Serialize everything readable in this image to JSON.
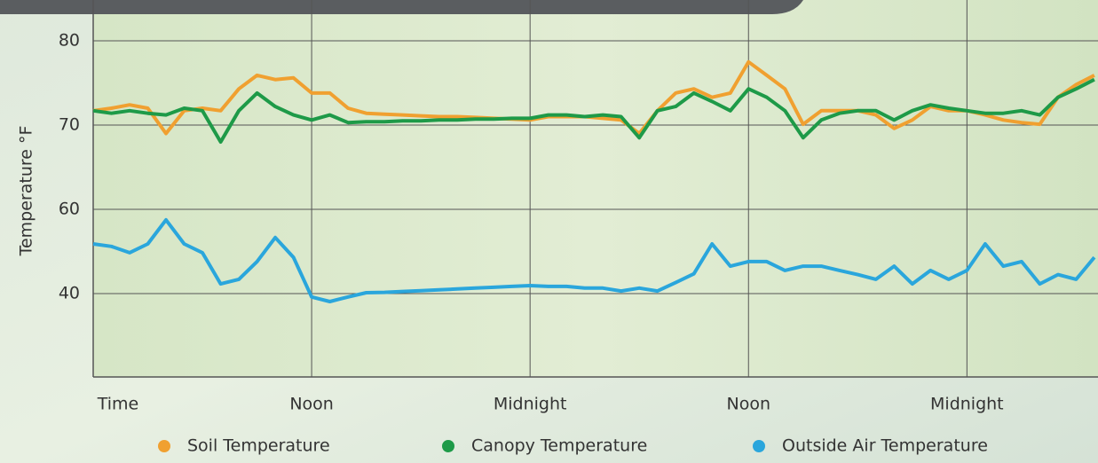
{
  "chart_data": {
    "type": "line",
    "y_label": "Temperature °F",
    "x_label": "Time",
    "x": [
      0,
      1,
      2,
      3,
      4,
      5,
      6,
      7,
      8,
      9,
      10,
      11,
      12,
      13,
      14,
      15,
      16,
      17,
      18,
      19,
      20,
      21,
      22,
      23,
      24,
      25,
      26,
      27,
      28,
      29,
      30,
      31,
      32,
      33,
      34,
      35,
      36,
      37,
      38,
      39,
      40,
      41,
      42,
      43,
      44,
      45,
      46,
      47,
      48,
      49,
      50,
      51,
      52,
      53,
      54,
      55
    ],
    "xlim": [
      0,
      55.2
    ],
    "xticks": [
      {
        "value": 12,
        "label": "Noon"
      },
      {
        "value": 24,
        "label": "Midnight"
      },
      {
        "value": 36,
        "label": "Noon"
      },
      {
        "value": 48,
        "label": "Midnight"
      }
    ],
    "ylim": [
      20,
      85
    ],
    "yticks": [
      80,
      70,
      60,
      40
    ],
    "grid": true,
    "legend": "bottom",
    "series": [
      {
        "name": "Soil Temperature",
        "color": "#f0a030",
        "values": [
          71.7,
          72,
          72.4,
          72,
          69,
          71.7,
          72,
          71.7,
          74.3,
          75.9,
          75.4,
          75.6,
          73.8,
          73.8,
          72,
          71.4,
          71.3,
          71.2,
          71.1,
          71,
          71,
          70.9,
          70.8,
          70.7,
          70.6,
          71,
          71,
          71,
          70.8,
          70.6,
          69,
          71.7,
          73.8,
          74.3,
          73.3,
          73.8,
          77.5,
          75.9,
          74.3,
          70.1,
          71.7,
          71.7,
          71.7,
          71.2,
          69.6,
          70.6,
          72.2,
          71.7,
          71.7,
          71.2,
          70.6,
          70.3,
          70.1,
          73.3,
          74.8,
          75.9
        ]
      },
      {
        "name": "Canopy Temperature",
        "color": "#1e9a48",
        "values": [
          71.7,
          71.4,
          71.7,
          71.4,
          71.2,
          72,
          71.7,
          68,
          71.7,
          73.8,
          72.2,
          71.2,
          70.6,
          71.2,
          70.3,
          70.4,
          70.4,
          70.5,
          70.5,
          70.6,
          70.6,
          70.7,
          70.7,
          70.8,
          70.8,
          71.2,
          71.2,
          71,
          71.2,
          71,
          68.5,
          71.7,
          72.2,
          73.8,
          72.8,
          71.7,
          74.3,
          73.3,
          71.7,
          68.5,
          70.6,
          71.4,
          71.7,
          71.7,
          70.6,
          71.7,
          72.4,
          72,
          71.7,
          71.4,
          71.4,
          71.7,
          71.2,
          73.3,
          74.3,
          75.4
        ]
      },
      {
        "name": "Outside Air Temperature",
        "color": "#2aa6dc",
        "values": [
          51.8,
          51.2,
          49.7,
          51.8,
          57.5,
          51.8,
          49.7,
          42.3,
          43.4,
          47.6,
          53.3,
          48.6,
          39.2,
          38.1,
          39.2,
          40.2,
          40.3,
          40.5,
          40.7,
          40.9,
          41.1,
          41.3,
          41.5,
          41.7,
          41.9,
          41.7,
          41.7,
          41.3,
          41.3,
          40.6,
          41.3,
          40.6,
          42.6,
          44.7,
          51.8,
          46.5,
          47.6,
          47.6,
          45.5,
          46.5,
          46.5,
          45.5,
          44.5,
          43.4,
          46.5,
          42.3,
          45.5,
          43.4,
          45.5,
          51.8,
          46.5,
          47.6,
          42.3,
          44.5,
          43.4,
          48.6
        ]
      }
    ]
  }
}
